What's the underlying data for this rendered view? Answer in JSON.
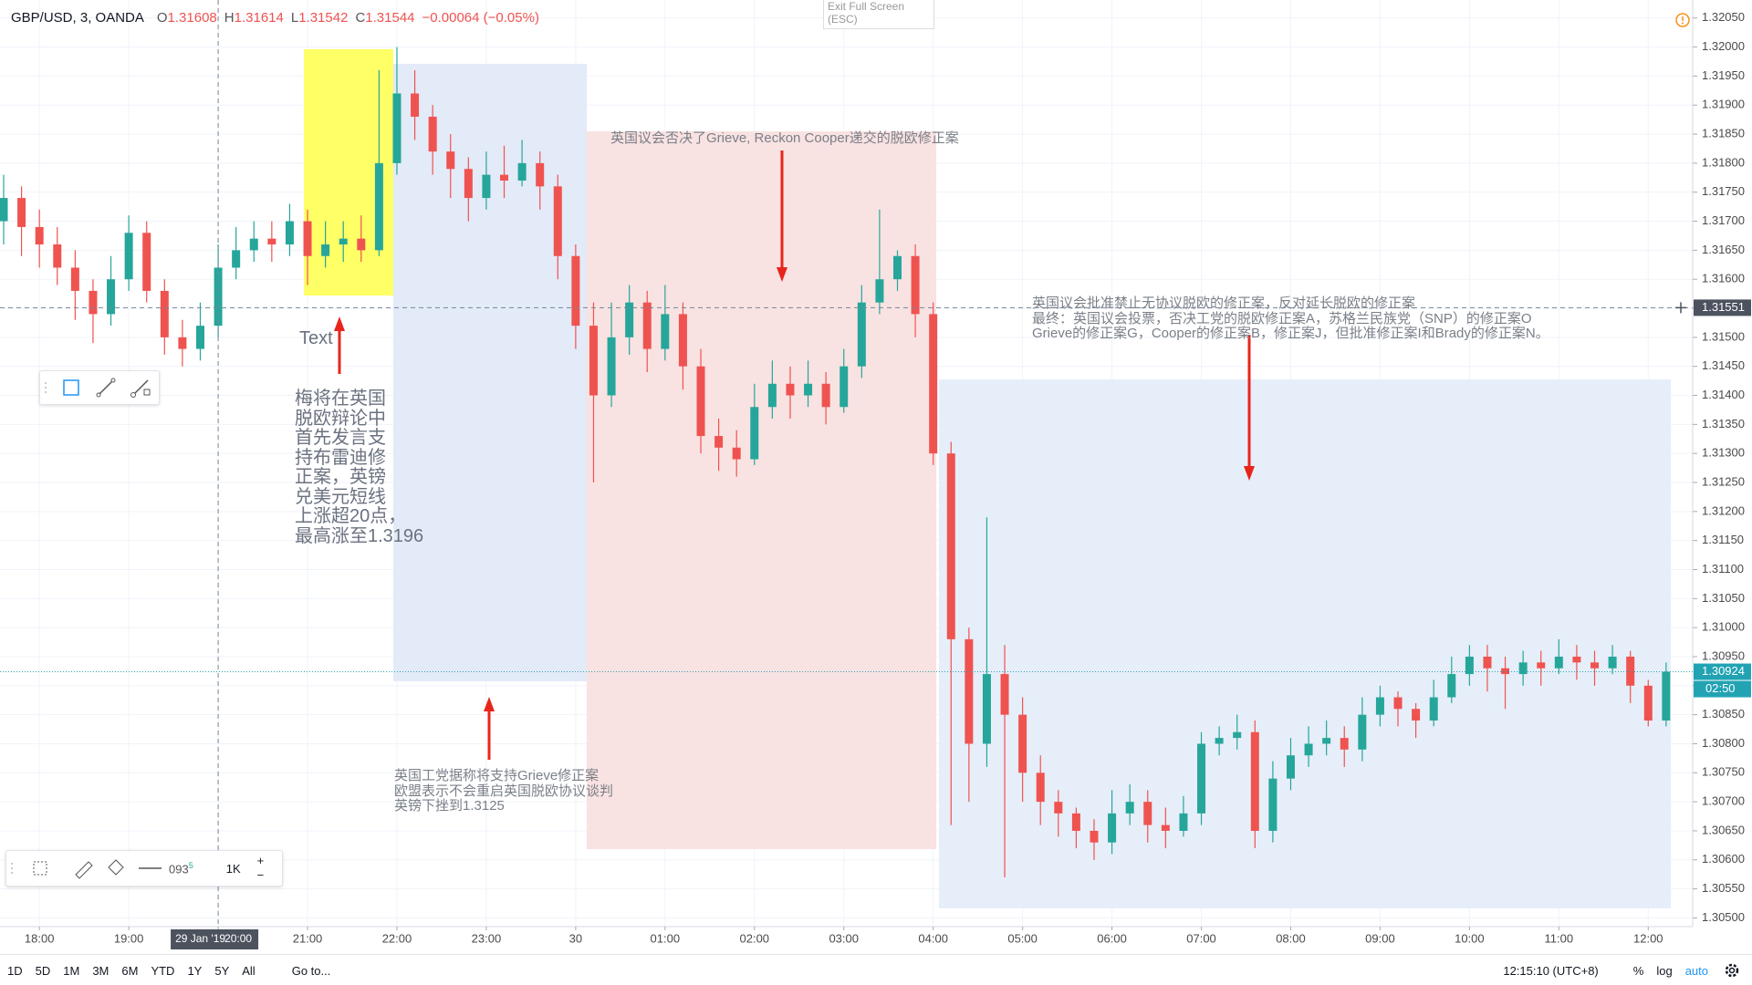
{
  "header": {
    "symbol": "GBP/USD, 3, OANDA",
    "ohlc": [
      [
        "O",
        "1.31608"
      ],
      [
        "H",
        "1.31614"
      ],
      [
        "L",
        "1.31542"
      ],
      [
        "C",
        "1.31544"
      ]
    ],
    "change": "−0.00064 (−0.05%)"
  },
  "exit_full_screen": {
    "title": "Exit Full Screen",
    "hint": "(ESC)"
  },
  "chart_data": {
    "type": "candlestick",
    "categories": [
      null,
      null,
      "18:00",
      null,
      null,
      null,
      null,
      "19:00",
      null,
      null,
      null,
      null,
      "20:00",
      null,
      null,
      null,
      null,
      "21:00",
      null,
      null,
      null,
      null,
      "22:00",
      null,
      null,
      null,
      null,
      "23:00",
      null,
      null,
      null,
      null,
      "30",
      null,
      null,
      null,
      null,
      "01:00",
      null,
      null,
      null,
      null,
      "02:00",
      null,
      null,
      null,
      null,
      "03:00",
      null,
      null,
      null,
      null,
      "04:00",
      null,
      null,
      null,
      null,
      "05:00",
      null,
      null,
      null,
      null,
      "06:00",
      null,
      null,
      null,
      null,
      "07:00",
      null,
      null,
      null,
      null,
      "08:00",
      null,
      null,
      null,
      null,
      "09:00",
      null,
      null,
      null,
      null,
      "10:00",
      null,
      null,
      null,
      null,
      "11:00",
      null,
      null,
      null,
      null,
      "12:00",
      null
    ],
    "open": [
      1.317,
      1.3174,
      1.3169,
      1.3166,
      1.3162,
      1.3158,
      1.3154,
      1.316,
      1.3168,
      1.3158,
      1.315,
      1.3148,
      1.3152,
      1.3162,
      1.3165,
      1.3167,
      1.3166,
      1.317,
      1.3164,
      1.3166,
      1.3167,
      1.3165,
      1.318,
      1.3192,
      1.3188,
      1.3182,
      1.3179,
      1.3174,
      1.3178,
      1.3177,
      1.318,
      1.3176,
      1.3164,
      1.3152,
      1.314,
      1.315,
      1.3156,
      1.3148,
      1.3154,
      1.3145,
      1.3133,
      1.3131,
      1.3129,
      1.3138,
      1.3142,
      1.314,
      1.3142,
      1.3138,
      1.3145,
      1.3156,
      1.316,
      1.3164,
      1.3154,
      1.313,
      1.3098,
      1.308,
      1.3092,
      1.3085,
      1.3075,
      1.307,
      1.3068,
      1.3065,
      1.3063,
      1.3068,
      1.307,
      1.3066,
      1.3065,
      1.3068,
      1.308,
      1.3081,
      1.3082,
      1.3065,
      1.3074,
      1.3078,
      1.308,
      1.3081,
      1.3079,
      1.3085,
      1.3088,
      1.3086,
      1.3084,
      1.3088,
      1.3092,
      1.3095,
      1.3093,
      1.3092,
      1.3094,
      1.3093,
      1.3095,
      1.3094,
      1.3093,
      1.3095,
      1.309,
      1.3084
    ],
    "high": [
      1.3178,
      1.3176,
      1.3172,
      1.3169,
      1.3165,
      1.316,
      1.3164,
      1.3171,
      1.317,
      1.316,
      1.3153,
      1.3156,
      1.3166,
      1.3169,
      1.317,
      1.317,
      1.3173,
      1.3172,
      1.317,
      1.317,
      1.3171,
      1.3196,
      1.32,
      1.3196,
      1.319,
      1.3185,
      1.3181,
      1.3182,
      1.3183,
      1.3184,
      1.3182,
      1.3178,
      1.3166,
      1.3156,
      1.3156,
      1.3159,
      1.3158,
      1.3159,
      1.3156,
      1.3148,
      1.3136,
      1.3134,
      1.3142,
      1.3146,
      1.3145,
      1.3146,
      1.3144,
      1.3148,
      1.3159,
      1.3172,
      1.3165,
      1.3166,
      1.3156,
      1.3132,
      1.31,
      1.3119,
      1.3097,
      1.3088,
      1.3078,
      1.3072,
      1.3069,
      1.3067,
      1.3072,
      1.3073,
      1.3072,
      1.3069,
      1.3071,
      1.3082,
      1.3083,
      1.3085,
      1.3084,
      1.3077,
      1.3081,
      1.3083,
      1.3084,
      1.3083,
      1.3088,
      1.309,
      1.3089,
      1.3087,
      1.3091,
      1.3095,
      1.3097,
      1.3097,
      1.3095,
      1.3096,
      1.3096,
      1.3098,
      1.3097,
      1.3096,
      1.3097,
      1.3096,
      1.3091,
      1.3094
    ],
    "low": [
      1.3166,
      1.3164,
      1.3162,
      1.3159,
      1.3153,
      1.3149,
      1.3152,
      1.3158,
      1.3156,
      1.3147,
      1.3145,
      1.3146,
      1.315,
      1.316,
      1.3163,
      1.3163,
      1.3164,
      1.3159,
      1.3162,
      1.3163,
      1.3163,
      1.3164,
      1.3178,
      1.3184,
      1.3178,
      1.3174,
      1.317,
      1.3172,
      1.3174,
      1.3176,
      1.3172,
      1.316,
      1.3148,
      1.3125,
      1.3138,
      1.3147,
      1.3144,
      1.3146,
      1.3141,
      1.313,
      1.3127,
      1.3126,
      1.3128,
      1.3136,
      1.3136,
      1.3138,
      1.3135,
      1.3137,
      1.3143,
      1.3154,
      1.3158,
      1.315,
      1.3128,
      1.3066,
      1.307,
      1.3076,
      1.3057,
      1.307,
      1.3066,
      1.3064,
      1.3062,
      1.306,
      1.3061,
      1.3066,
      1.3063,
      1.3062,
      1.3064,
      1.3066,
      1.3078,
      1.3079,
      1.3062,
      1.3063,
      1.3072,
      1.3076,
      1.3078,
      1.3076,
      1.3077,
      1.3083,
      1.3083,
      1.3081,
      1.3083,
      1.3087,
      1.309,
      1.3089,
      1.3086,
      1.309,
      1.309,
      1.3092,
      1.3091,
      1.309,
      1.3092,
      1.3087,
      1.3083,
      1.3083
    ],
    "close": [
      1.3174,
      1.3169,
      1.3166,
      1.3162,
      1.3158,
      1.3154,
      1.316,
      1.3168,
      1.3158,
      1.315,
      1.3148,
      1.3152,
      1.3162,
      1.3165,
      1.3167,
      1.3166,
      1.317,
      1.3164,
      1.3166,
      1.3167,
      1.3165,
      1.318,
      1.3192,
      1.3188,
      1.3182,
      1.3179,
      1.3174,
      1.3178,
      1.3177,
      1.318,
      1.3176,
      1.3164,
      1.3152,
      1.314,
      1.315,
      1.3156,
      1.3148,
      1.3154,
      1.3145,
      1.3133,
      1.3131,
      1.3129,
      1.3138,
      1.3142,
      1.314,
      1.3142,
      1.3138,
      1.3145,
      1.3156,
      1.316,
      1.3164,
      1.3154,
      1.313,
      1.3098,
      1.308,
      1.3092,
      1.3085,
      1.3075,
      1.307,
      1.3068,
      1.3065,
      1.3063,
      1.3068,
      1.307,
      1.3066,
      1.3065,
      1.3068,
      1.308,
      1.3081,
      1.3082,
      1.3065,
      1.3074,
      1.3078,
      1.308,
      1.3081,
      1.3079,
      1.3085,
      1.3088,
      1.3086,
      1.3084,
      1.3088,
      1.3092,
      1.3095,
      1.3093,
      1.3092,
      1.3094,
      1.3093,
      1.3095,
      1.3094,
      1.3093,
      1.3095,
      1.309,
      1.3084,
      1.30924
    ],
    "up_color": "#26a69a",
    "down_color": "#ef5350",
    "ylim": [
      1.30485,
      1.32081
    ],
    "yticks": [
      {
        "value": 1.3205,
        "label": "1.32050"
      },
      {
        "value": 1.32,
        "label": "1.32000"
      },
      {
        "value": 1.3195,
        "label": "1.31950"
      },
      {
        "value": 1.319,
        "label": "1.31900"
      },
      {
        "value": 1.3185,
        "label": "1.31850"
      },
      {
        "value": 1.318,
        "label": "1.31800"
      },
      {
        "value": 1.3175,
        "label": "1.31750"
      },
      {
        "value": 1.317,
        "label": "1.31700"
      },
      {
        "value": 1.3165,
        "label": "1.31650"
      },
      {
        "value": 1.316,
        "label": "1.31600"
      },
      {
        "value": 1.3155,
        "label": "1.31550"
      },
      {
        "value": 1.315,
        "label": "1.31500"
      },
      {
        "value": 1.3145,
        "label": "1.31450"
      },
      {
        "value": 1.314,
        "label": "1.31400"
      },
      {
        "value": 1.3135,
        "label": "1.31350"
      },
      {
        "value": 1.313,
        "label": "1.31300"
      },
      {
        "value": 1.3125,
        "label": "1.31250"
      },
      {
        "value": 1.312,
        "label": "1.31200"
      },
      {
        "value": 1.3115,
        "label": "1.31150"
      },
      {
        "value": 1.311,
        "label": "1.31100"
      },
      {
        "value": 1.3105,
        "label": "1.31050"
      },
      {
        "value": 1.31,
        "label": "1.31000"
      },
      {
        "value": 1.3095,
        "label": "1.30950"
      },
      {
        "value": 1.309,
        "label": "1.30900"
      },
      {
        "value": 1.3085,
        "label": "1.30850"
      },
      {
        "value": 1.308,
        "label": "1.30800"
      },
      {
        "value": 1.3075,
        "label": "1.30750"
      },
      {
        "value": 1.307,
        "label": "1.30700"
      },
      {
        "value": 1.3065,
        "label": "1.30650"
      },
      {
        "value": 1.306,
        "label": "1.30600"
      },
      {
        "value": 1.3055,
        "label": "1.30550"
      },
      {
        "value": 1.305,
        "label": "1.30500"
      }
    ],
    "grid": true,
    "crosshair_price": 1.31551,
    "crosshair_date": "29 Jan '19",
    "last_price": 1.30924,
    "last_price_color": "#22a3b3",
    "countdown": "02:50"
  },
  "drawings": {
    "text_label": "Text",
    "note_left": [
      "梅将在英国",
      "脱欧辩论中",
      "首先发言支",
      "持布雷迪修",
      "正案，英镑",
      "兑美元短线",
      "上涨超20点，",
      "最高涨至1.3196"
    ],
    "note_top": "英国议会否决了Grieve, Reckon Cooper递交的脱欧修正案",
    "note_right": [
      "英国议会批准禁止无协议脱欧的修正案，反对延长脱欧的修正案",
      "最终：英国议会投票，否决工党的脱欧修正案A，苏格兰民族党（SNP）的修正案O",
      "Grieve的修正案G，Cooper的修正案B，修正案J，但批准修正案I和Brady的修正案N。"
    ],
    "note_bottom": [
      "英国工党据称将支持Grieve修正案",
      "欧盟表示不会重启英国脱欧协议谈判",
      "英镑下挫到1.3125"
    ]
  },
  "toolbar": {
    "partial_value": "093",
    "superscript": "5",
    "size": "1K",
    "plus": "+",
    "minus": "−"
  },
  "bottom_bar": {
    "periods": [
      "1D",
      "5D",
      "1M",
      "3M",
      "6M",
      "YTD",
      "1Y",
      "5Y",
      "All"
    ],
    "goto": "Go to...",
    "clock": "12:15:10 (UTC+8)",
    "percent": "%",
    "log": "log",
    "auto": "auto"
  }
}
